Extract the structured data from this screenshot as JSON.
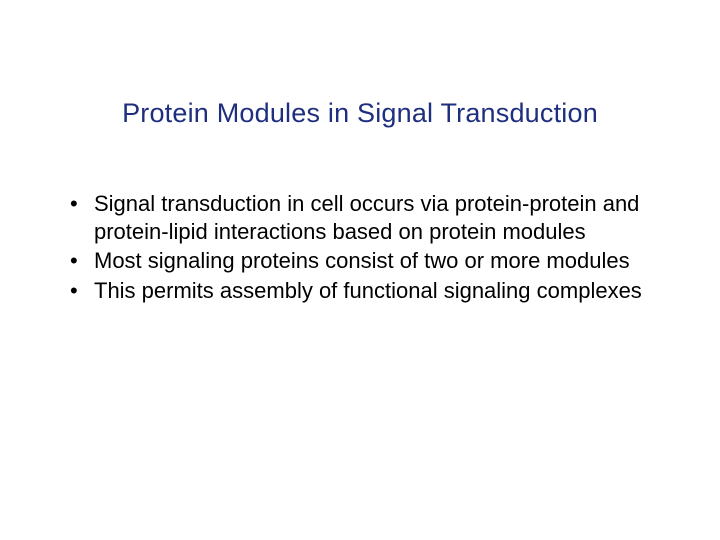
{
  "slide": {
    "title": "Protein Modules in Signal Transduction",
    "title_color": "#1f2f7f",
    "body_color": "#000000",
    "background_color": "#ffffff",
    "title_fontsize": 27,
    "body_fontsize": 22,
    "bullets": [
      "Signal transduction in cell occurs via protein-protein and protein-lipid interactions based on protein modules",
      "Most signaling proteins consist of two or more modules",
      "This permits assembly of functional signaling complexes"
    ]
  }
}
